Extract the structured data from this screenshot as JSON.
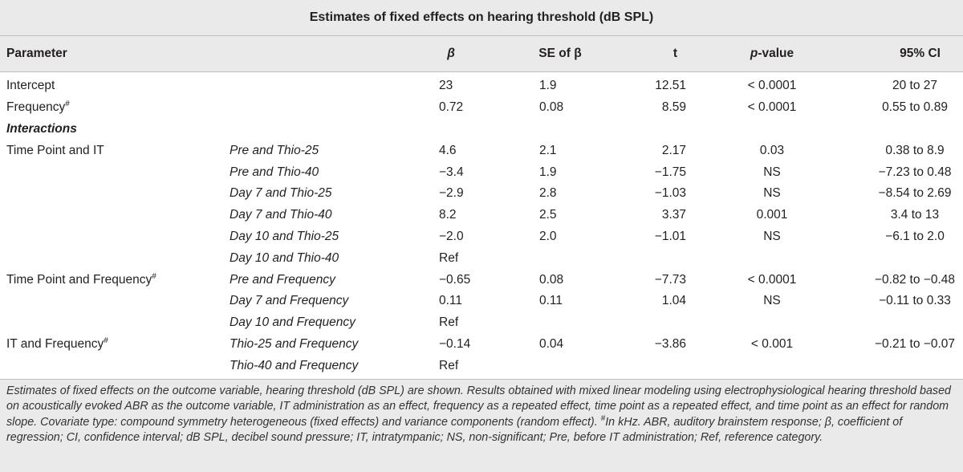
{
  "title": "Estimates of fixed effects on hearing threshold (dB SPL)",
  "headers": {
    "parameter": "Parameter",
    "beta": "β",
    "se": "SE of β",
    "t": "t",
    "p_italic": "p",
    "p_rest": "-value",
    "ci": "95% CI"
  },
  "rows": [
    {
      "param": "Intercept",
      "sup": "",
      "sub": "",
      "beta": "23",
      "se": "1.9",
      "t": "12.51",
      "p": "< 0.0001",
      "ci": "20 to 27"
    },
    {
      "param": "Frequency",
      "sup": "#",
      "sub": "",
      "beta": "0.72",
      "se": "0.08",
      "t": "8.59",
      "p": "< 0.0001",
      "ci": "0.55 to 0.89"
    },
    {
      "param": "Interactions",
      "sup": "",
      "sub": "",
      "beta": "",
      "se": "",
      "t": "",
      "p": "",
      "ci": ""
    },
    {
      "param": "Time Point and IT",
      "sup": "",
      "sub": "Pre and Thio-25",
      "beta": "4.6",
      "se": "2.1",
      "t": "2.17",
      "p": "0.03",
      "ci": "0.38 to 8.9"
    },
    {
      "param": "",
      "sup": "",
      "sub": "Pre and Thio-40",
      "beta": "−3.4",
      "se": "1.9",
      "t": "−1.75",
      "p": "NS",
      "ci": "−7.23 to 0.48"
    },
    {
      "param": "",
      "sup": "",
      "sub": "Day 7 and Thio-25",
      "beta": "−2.9",
      "se": "2.8",
      "t": "−1.03",
      "p": "NS",
      "ci": "−8.54 to 2.69"
    },
    {
      "param": "",
      "sup": "",
      "sub": "Day 7 and Thio-40",
      "beta": "8.2",
      "se": "2.5",
      "t": "3.37",
      "p": "0.001",
      "ci": "3.4 to 13"
    },
    {
      "param": "",
      "sup": "",
      "sub": "Day 10 and Thio-25",
      "beta": "−2.0",
      "se": "2.0",
      "t": "−1.01",
      "p": "NS",
      "ci": "−6.1 to 2.0"
    },
    {
      "param": "",
      "sup": "",
      "sub": "Day 10 and Thio-40",
      "beta": "Ref",
      "se": "",
      "t": "",
      "p": "",
      "ci": ""
    },
    {
      "param": "Time Point and Frequency",
      "sup": "#",
      "sub": "Pre and Frequency",
      "beta": "−0.65",
      "se": "0.08",
      "t": "−7.73",
      "p": "< 0.0001",
      "ci": "−0.82 to −0.48"
    },
    {
      "param": "",
      "sup": "",
      "sub": "Day 7 and Frequency",
      "beta": "0.11",
      "se": "0.11",
      "t": "1.04",
      "p": "NS",
      "ci": "−0.11 to 0.33"
    },
    {
      "param": "",
      "sup": "",
      "sub": "Day 10 and Frequency",
      "beta": "Ref",
      "se": "",
      "t": "",
      "p": "",
      "ci": ""
    },
    {
      "param": "IT and Frequency",
      "sup": "#",
      "sub": "Thio-25 and Frequency",
      "beta": "−0.14",
      "se": "0.04",
      "t": "−3.86",
      "p": "< 0.001",
      "ci": "−0.21 to −0.07"
    },
    {
      "param": "",
      "sup": "",
      "sub": "Thio-40 and Frequency",
      "beta": "Ref",
      "se": "",
      "t": "",
      "p": "",
      "ci": ""
    }
  ],
  "footnote": {
    "part1": "Estimates of fixed effects on the outcome variable, hearing threshold (dB SPL) are shown. Results obtained with mixed linear modeling using electrophysiological hearing threshold based on acoustically evoked ABR as the outcome variable, IT administration as an effect, frequency as a repeated effect, time point as a repeated effect, and time point as an effect for random slope. Covariate type: compound symmetry heterogeneous (fixed effects) and variance components (random effect). ",
    "sup": "#",
    "part2": "In kHz. ABR, auditory brainstem response; β, coefficient of regression; CI, confidence interval; dB SPL, decibel sound pressure; IT, intratympanic; NS, non-significant; Pre, before IT administration; Ref, reference category."
  }
}
